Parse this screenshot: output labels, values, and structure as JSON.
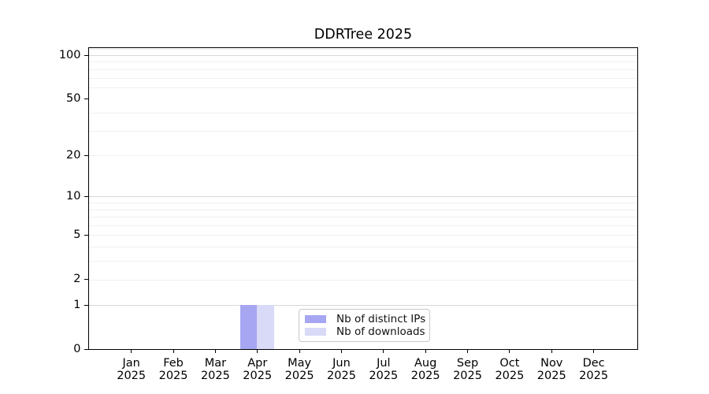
{
  "figure": {
    "background": "#ffffff"
  },
  "chart_data": {
    "type": "bar",
    "title": "DDRTree 2025",
    "categories": [
      "Jan 2025",
      "Feb 2025",
      "Mar 2025",
      "Apr 2025",
      "May 2025",
      "Jun 2025",
      "Jul 2025",
      "Aug 2025",
      "Sep 2025",
      "Oct 2025",
      "Nov 2025",
      "Dec 2025"
    ],
    "series": [
      {
        "name": "Nb of distinct IPs",
        "color": "#a6a6f2",
        "values": [
          0,
          0,
          0,
          1,
          0,
          0,
          0,
          0,
          0,
          0,
          0,
          0
        ]
      },
      {
        "name": "Nb of downloads",
        "color": "#d9d9f8",
        "values": [
          0,
          0,
          0,
          1,
          0,
          0,
          0,
          0,
          0,
          0,
          0,
          0
        ]
      }
    ],
    "xlabel": "",
    "ylabel": "",
    "y_scale": "log1p",
    "ylim": [
      0,
      112
    ],
    "y_ticks": [
      0,
      1,
      2,
      5,
      10,
      20,
      50,
      100
    ],
    "y_major_gridlines": [
      1,
      10,
      100
    ],
    "y_minor_gridlines": [
      2,
      3,
      4,
      5,
      6,
      7,
      8,
      9,
      20,
      30,
      40,
      60,
      70,
      80,
      90,
      110
    ],
    "grid": "horizontal",
    "legend_position": "lower center inside plot",
    "colors": {
      "axis": "#000000",
      "text": "#000000",
      "minor_grid": "#f0f0f0",
      "major_grid": "#d9d9d9",
      "legend_border": "#c9c9c9"
    }
  }
}
